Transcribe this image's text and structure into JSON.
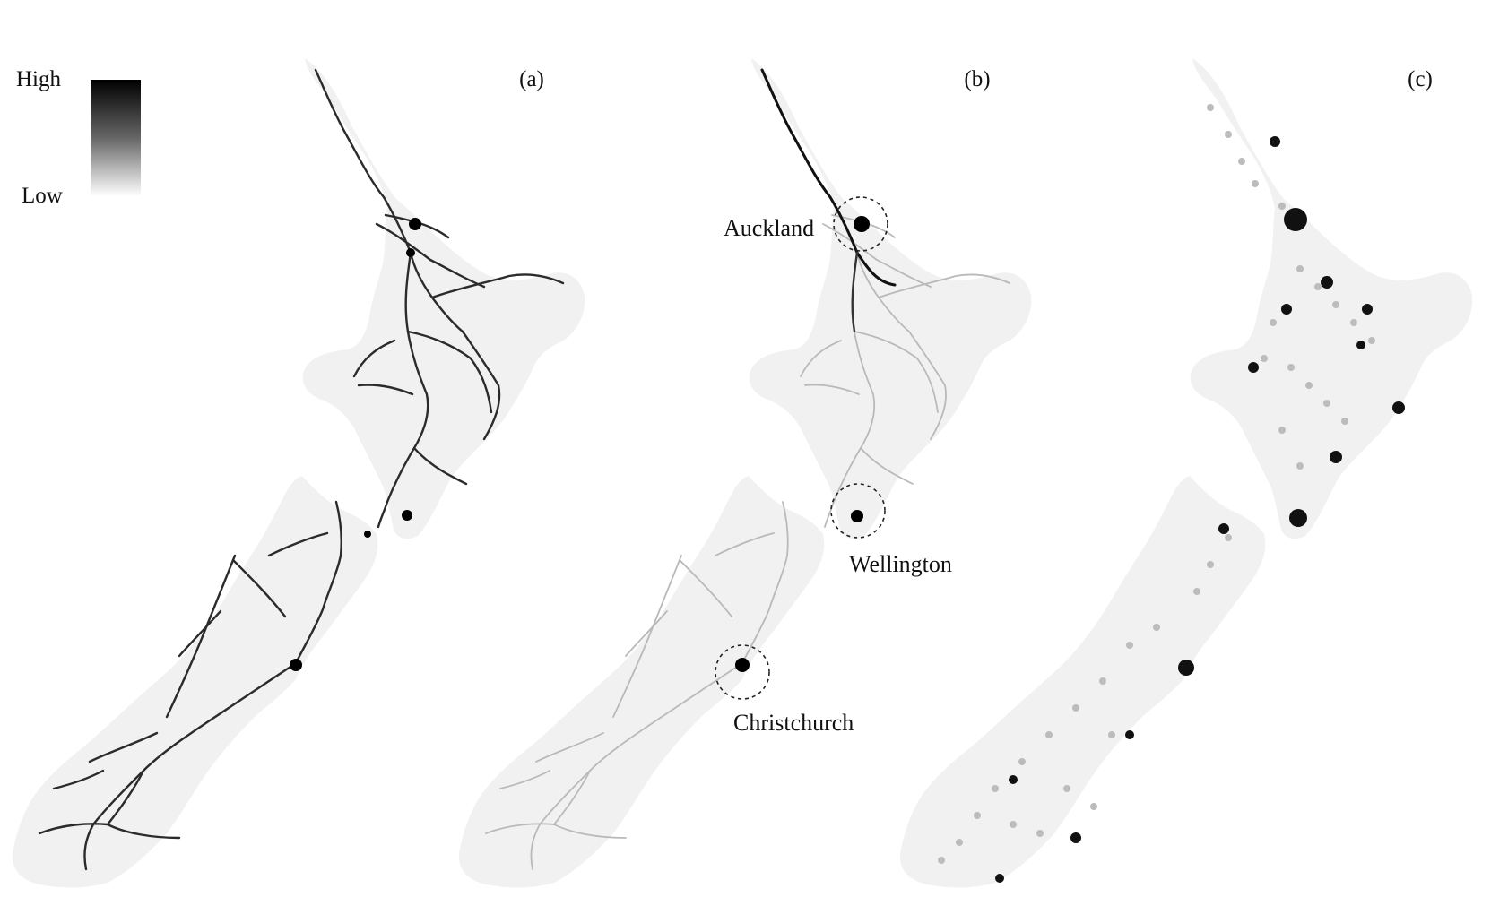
{
  "legend": {
    "high_label": "High",
    "low_label": "Low",
    "ramp": [
      "#000000",
      "#ffffff"
    ]
  },
  "panels": [
    {
      "label": "(a)"
    },
    {
      "label": "(b)"
    },
    {
      "label": "(c)"
    }
  ],
  "cities": {
    "auckland": "Auckland",
    "wellington": "Wellington",
    "christchurch": "Christchurch"
  },
  "colors": {
    "land": "#f1f1f1",
    "high": "#000000",
    "low": "#ffffff"
  }
}
